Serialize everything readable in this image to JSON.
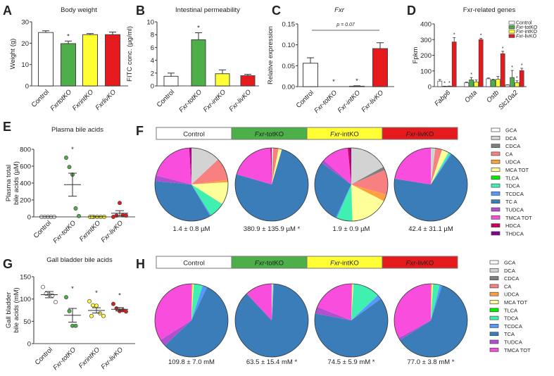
{
  "group_colors": {
    "Control": "#ffffff",
    "totKO": "#4caf48",
    "intKO": "#ffff33",
    "livKO": "#e41a1c"
  },
  "panel_letters": [
    "A",
    "B",
    "C",
    "D",
    "E",
    "F",
    "G",
    "H"
  ],
  "chart_data": [
    {
      "id": "A",
      "type": "bar",
      "title": "Body weight",
      "ylabel": "Weight (g)",
      "ylim": [
        0,
        30
      ],
      "yticks": [
        "0",
        "10",
        "20",
        "30"
      ],
      "categories": [
        "Control",
        "FxrtotKO",
        "FxrintKO",
        "FxrlivKO"
      ],
      "values": [
        25.0,
        19.8,
        24.0,
        24.0
      ],
      "errors": [
        0.8,
        1.2,
        0.5,
        1.2
      ],
      "significant": [
        "",
        "*",
        "",
        ""
      ]
    },
    {
      "id": "B",
      "type": "bar",
      "title": "Intestinal permeability",
      "ylabel": "FITC conc. (µg/ml)",
      "ylim": [
        0,
        10
      ],
      "yticks": [
        "0",
        "2",
        "4",
        "6",
        "8",
        "10"
      ],
      "categories": [
        "Control",
        "Fxr-totKO",
        "Fxr-intKO",
        "Fxr-livKO"
      ],
      "values": [
        1.5,
        7.2,
        1.9,
        1.6
      ],
      "errors": [
        0.5,
        1.1,
        0.6,
        0.2
      ],
      "significant": [
        "",
        "*",
        "",
        ""
      ]
    },
    {
      "id": "C",
      "type": "bar",
      "title": "Fxr",
      "ylabel": "Relative expression",
      "ylim": [
        0,
        0.15
      ],
      "yticks": [
        "0.00",
        "0.05",
        "0.10",
        "0.15"
      ],
      "categories": [
        "Control",
        "Fxr-totKO",
        "Fxr-intKO",
        "Fxr-livKO"
      ],
      "values": [
        0.056,
        0.0,
        0.001,
        0.091
      ],
      "errors": [
        0.013,
        0,
        0.001,
        0.014
      ],
      "significant": [
        "",
        "*",
        "*",
        ""
      ],
      "annotation": "p = 0.07"
    },
    {
      "id": "D",
      "type": "bar",
      "title": "Fxr-related genes",
      "ylabel": "Fpkm",
      "ylim": [
        0,
        400
      ],
      "yticks": [
        "0",
        "100",
        "200",
        "300",
        "400"
      ],
      "categories": [
        "Fabp6",
        "Osta",
        "Ostb",
        "Slc10a2"
      ],
      "legend": [
        {
          "italic": "",
          "text": "Control"
        },
        {
          "italic": "Fxr",
          "text": "-totKO"
        },
        {
          "italic": "Fxr",
          "text": "-intKO"
        },
        {
          "italic": "Fxr",
          "text": "-livKO"
        }
      ],
      "series": [
        {
          "name": "Control",
          "values": [
            35,
            25,
            50,
            10
          ],
          "errors": [
            10,
            4,
            5,
            2
          ],
          "significant": [
            "",
            "",
            "",
            ""
          ]
        },
        {
          "name": "Fxr-totKO",
          "values": [
            2,
            43,
            43,
            58
          ],
          "errors": [
            1,
            15,
            4,
            45
          ],
          "significant": [
            "*",
            "*",
            "",
            "*"
          ]
        },
        {
          "name": "Fxr-intKO",
          "values": [
            3,
            30,
            47,
            25
          ],
          "errors": [
            1,
            12,
            18,
            12
          ],
          "significant": [
            "*",
            "",
            "",
            "*"
          ]
        },
        {
          "name": "Fxr-livKO",
          "values": [
            285,
            300,
            210,
            102
          ],
          "errors": [
            28,
            8,
            15,
            15
          ],
          "significant": [
            "*",
            "*",
            "*",
            "*"
          ]
        }
      ]
    },
    {
      "id": "E",
      "type": "scatter",
      "title": "Plasma bile acids",
      "ylabel": [
        "Plasma total",
        "bile acids (µM)"
      ],
      "ylim": [
        0,
        800
      ],
      "yticks": [
        "0",
        "200",
        "400",
        "600",
        "800"
      ],
      "categories": [
        "Control",
        "Fxr-totKO",
        "FxrintKO",
        "Fxr-livKO"
      ],
      "points": [
        [
          0,
          0,
          0,
          0,
          0
        ],
        [
          700,
          590,
          500,
          100,
          10
        ],
        [
          0,
          0,
          0,
          0,
          0,
          0
        ],
        [
          0,
          15,
          165,
          20,
          15
        ]
      ],
      "means": [
        1.4,
        380.9,
        1.9,
        42.4
      ],
      "sems": [
        0.8,
        135.9,
        0.9,
        31.1
      ],
      "significant": [
        "",
        "*",
        "",
        ""
      ]
    },
    {
      "id": "F",
      "type": "pie",
      "legend_position": "right",
      "groups": [
        {
          "italic": "",
          "text": "Control"
        },
        {
          "italic": "Fxr",
          "text": "-totKO"
        },
        {
          "italic": "Fxr",
          "text": "-intKO"
        },
        {
          "italic": "Fxr",
          "text": "-livKO"
        }
      ],
      "slices": [
        "GCA",
        "DCA",
        "CDCA",
        "CA",
        "UDCA",
        "MCA TOT",
        "TLCA",
        "TDCA",
        "TCDCA",
        "TC A",
        "TUDCA",
        "TMCA TOT",
        "HDCA",
        "THDCA"
      ],
      "colors": [
        "#ffffff",
        "#d3d3d3",
        "#808080",
        "#f88080",
        "#ffa040",
        "#ffff99",
        "#00ee00",
        "#40f0b0",
        "#5599ff",
        "#3a7db8",
        "#b050d0",
        "#f84ddd",
        "#c8005a",
        "#800090"
      ],
      "percentages": [
        [
          0,
          13,
          0,
          10,
          1,
          10,
          0,
          7,
          0.5,
          35,
          2.5,
          20,
          0.5,
          0.5
        ],
        [
          0.5,
          0,
          0,
          2.5,
          0,
          1.5,
          0,
          0,
          0,
          75,
          0,
          20,
          0.5,
          0
        ],
        [
          0,
          17,
          1.5,
          11,
          3,
          17,
          0,
          7,
          0.5,
          28,
          1.5,
          12,
          1,
          0.5
        ],
        [
          0,
          2,
          0,
          3,
          0,
          3,
          0,
          1,
          0.5,
          68,
          0,
          22.5,
          0,
          0
        ]
      ],
      "totals": [
        "1.4 ± 0.8 µM",
        "380.9 ± 135.9 µM *",
        "1.9 ± 0.9 µM",
        "42.4 ± 31.1 µM"
      ]
    },
    {
      "id": "G",
      "type": "scatter",
      "title": "Gall bladder bile acids",
      "ylabel": [
        "Gall bladder",
        "bile acids (mM)"
      ],
      "ylim": [
        0,
        150
      ],
      "yticks": [
        "0",
        "50",
        "100",
        "150"
      ],
      "categories": [
        "Control",
        "Fxr-totKO",
        "FxrintKO",
        "Fxr-livKO"
      ],
      "points": [
        [
          127,
          112,
          110,
          108,
          93
        ],
        [
          104,
          73,
          40,
          40
        ],
        [
          95,
          86,
          85,
          68,
          62,
          62
        ],
        [
          89,
          79,
          73,
          75,
          72
        ]
      ],
      "means": [
        109.8,
        63.5,
        74.5,
        77.0
      ],
      "sems": [
        7.0,
        15.4,
        5.9,
        3.8
      ],
      "significant": [
        "",
        "*",
        "*",
        "*"
      ]
    },
    {
      "id": "H",
      "type": "pie",
      "legend_position": "right",
      "groups": [
        {
          "italic": "",
          "text": "Control"
        },
        {
          "italic": "Fxr",
          "text": "-totKO"
        },
        {
          "italic": "Fxr",
          "text": "-intKO"
        },
        {
          "italic": "Fxr",
          "text": "-livKO"
        }
      ],
      "slices": [
        "GCA",
        "DCA",
        "CDCA",
        "CA",
        "UDCA",
        "MCA TOT",
        "TLCA",
        "TDCA",
        "TCDCA",
        "TCA",
        "TUDCA",
        "TMCA TOT"
      ],
      "colors": [
        "#ffffff",
        "#d3d3d3",
        "#808080",
        "#f88080",
        "#ffa040",
        "#ffff99",
        "#00ee00",
        "#40f0b0",
        "#5599ff",
        "#3a7db8",
        "#b050d0",
        "#f84ddd"
      ],
      "percentages": [
        [
          0,
          0,
          0,
          0,
          0.5,
          0.5,
          0,
          4,
          2,
          56,
          3,
          34
        ],
        [
          0,
          0,
          0,
          0,
          0,
          0.5,
          0,
          0,
          0.5,
          87,
          0,
          12
        ],
        [
          0,
          0,
          0,
          0.5,
          0,
          0.5,
          0,
          12,
          2,
          63,
          3,
          19
        ],
        [
          0,
          0,
          0,
          0,
          0.5,
          0.5,
          0,
          3,
          1,
          61,
          1,
          33
        ]
      ],
      "totals": [
        "109.8 ± 7.0 mM",
        "63.5 ± 15.4 mM *",
        "74.5 ± 5.9 mM *",
        "77.0 ± 3.8  mM *"
      ]
    }
  ]
}
